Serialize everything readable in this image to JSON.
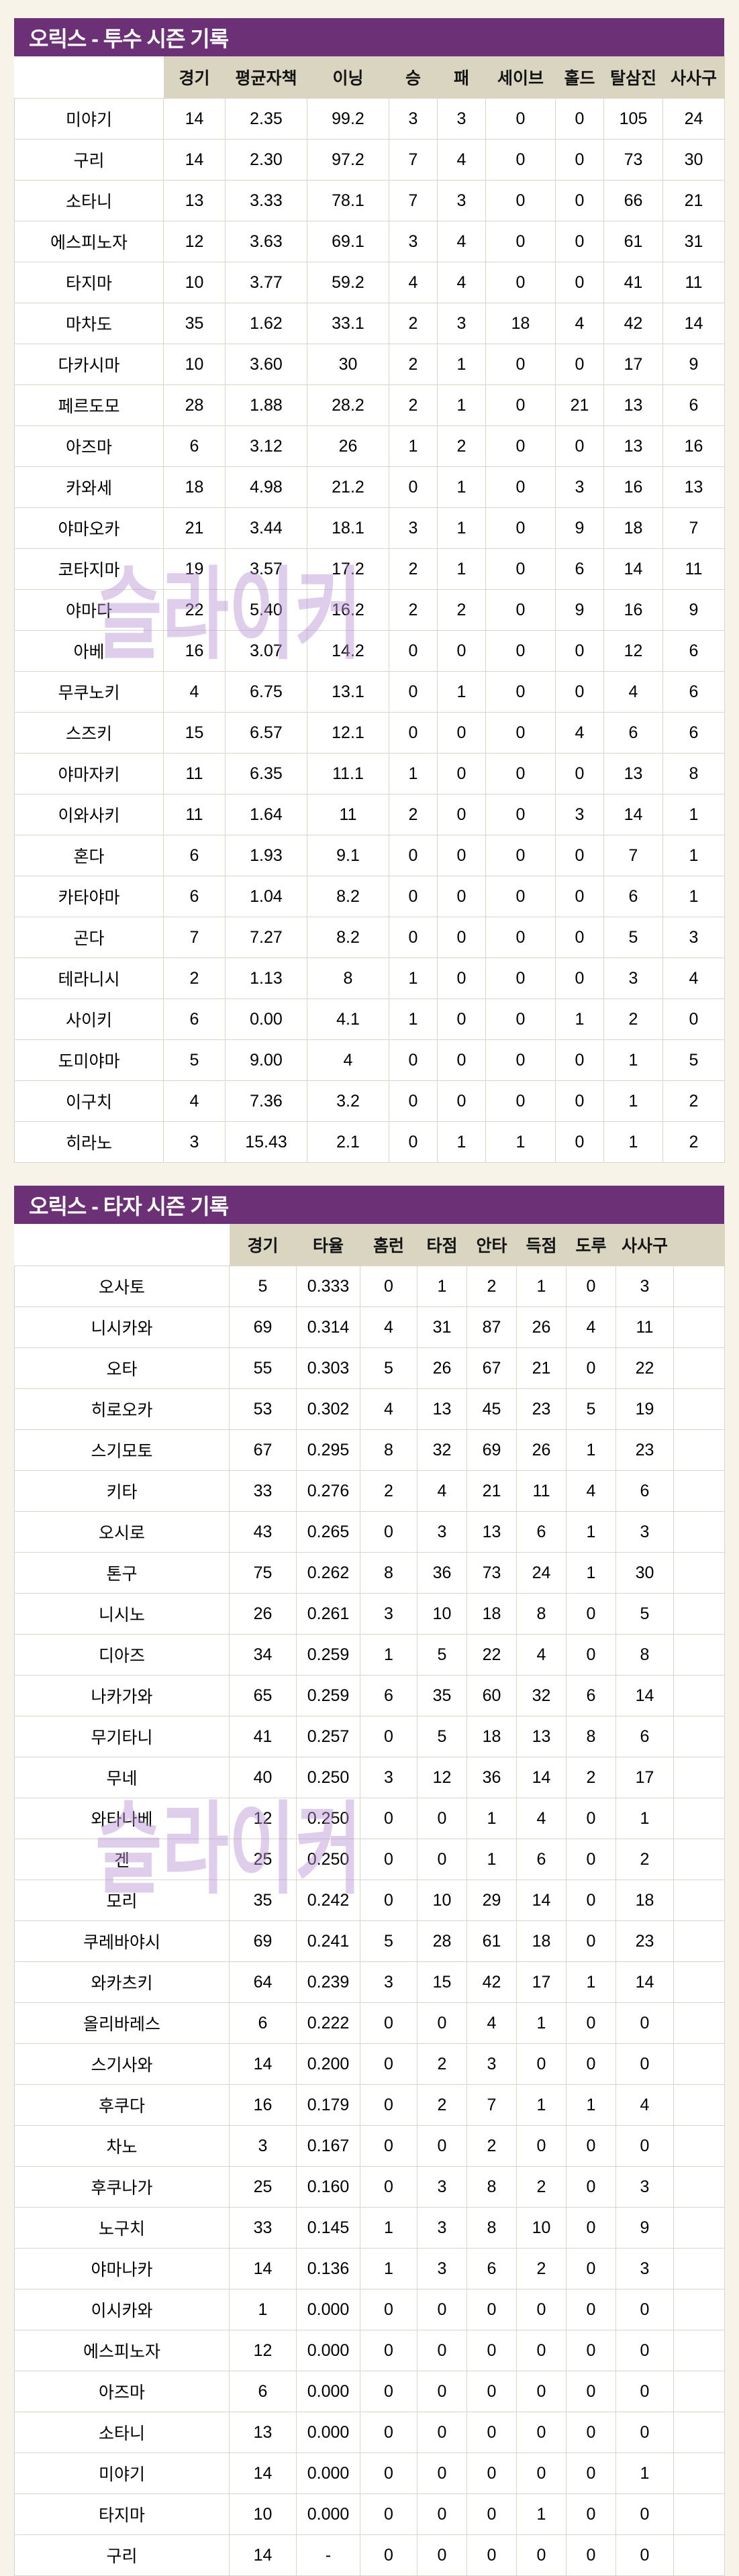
{
  "colors": {
    "page_background": "#f7f3e8",
    "title_bar_bg": "#6b3076",
    "title_text": "#ffffff",
    "column_header_bg": "#dad5c0",
    "cell_bg": "#ffffff",
    "cell_border": "#d9d4c5",
    "watermark_color": "rgba(182,146,212,0.45)"
  },
  "watermark_text": "슬라이커",
  "pitchers": {
    "title": "오릭스 - 투수 시즌 기록",
    "columns": [
      "경기",
      "평균자책",
      "이닝",
      "승",
      "패",
      "세이브",
      "홀드",
      "탈삼진",
      "사사구"
    ],
    "trailing_empty_column": false,
    "rows": [
      {
        "name": "미야기",
        "values": [
          "14",
          "2.35",
          "99.2",
          "3",
          "3",
          "0",
          "0",
          "105",
          "24"
        ]
      },
      {
        "name": "구리",
        "values": [
          "14",
          "2.30",
          "97.2",
          "7",
          "4",
          "0",
          "0",
          "73",
          "30"
        ]
      },
      {
        "name": "소타니",
        "values": [
          "13",
          "3.33",
          "78.1",
          "7",
          "3",
          "0",
          "0",
          "66",
          "21"
        ]
      },
      {
        "name": "에스피노자",
        "values": [
          "12",
          "3.63",
          "69.1",
          "3",
          "4",
          "0",
          "0",
          "61",
          "31"
        ]
      },
      {
        "name": "타지마",
        "values": [
          "10",
          "3.77",
          "59.2",
          "4",
          "4",
          "0",
          "0",
          "41",
          "11"
        ]
      },
      {
        "name": "마차도",
        "values": [
          "35",
          "1.62",
          "33.1",
          "2",
          "3",
          "18",
          "4",
          "42",
          "14"
        ]
      },
      {
        "name": "다카시마",
        "values": [
          "10",
          "3.60",
          "30",
          "2",
          "1",
          "0",
          "0",
          "17",
          "9"
        ]
      },
      {
        "name": "페르도모",
        "values": [
          "28",
          "1.88",
          "28.2",
          "2",
          "1",
          "0",
          "21",
          "13",
          "6"
        ]
      },
      {
        "name": "아즈마",
        "values": [
          "6",
          "3.12",
          "26",
          "1",
          "2",
          "0",
          "0",
          "13",
          "16"
        ]
      },
      {
        "name": "카와세",
        "values": [
          "18",
          "4.98",
          "21.2",
          "0",
          "1",
          "0",
          "3",
          "16",
          "13"
        ]
      },
      {
        "name": "야마오카",
        "values": [
          "21",
          "3.44",
          "18.1",
          "3",
          "1",
          "0",
          "9",
          "18",
          "7"
        ]
      },
      {
        "name": "코타지마",
        "values": [
          "19",
          "3.57",
          "17.2",
          "2",
          "1",
          "0",
          "6",
          "14",
          "11"
        ]
      },
      {
        "name": "야마다",
        "values": [
          "22",
          "5.40",
          "16.2",
          "2",
          "2",
          "0",
          "9",
          "16",
          "9"
        ]
      },
      {
        "name": "아베",
        "values": [
          "16",
          "3.07",
          "14.2",
          "0",
          "0",
          "0",
          "0",
          "12",
          "6"
        ]
      },
      {
        "name": "무쿠노키",
        "values": [
          "4",
          "6.75",
          "13.1",
          "0",
          "1",
          "0",
          "0",
          "4",
          "6"
        ]
      },
      {
        "name": "스즈키",
        "values": [
          "15",
          "6.57",
          "12.1",
          "0",
          "0",
          "0",
          "4",
          "6",
          "6"
        ]
      },
      {
        "name": "야마자키",
        "values": [
          "11",
          "6.35",
          "11.1",
          "1",
          "0",
          "0",
          "0",
          "13",
          "8"
        ]
      },
      {
        "name": "이와사키",
        "values": [
          "11",
          "1.64",
          "11",
          "2",
          "0",
          "0",
          "3",
          "14",
          "1"
        ]
      },
      {
        "name": "혼다",
        "values": [
          "6",
          "1.93",
          "9.1",
          "0",
          "0",
          "0",
          "0",
          "7",
          "1"
        ]
      },
      {
        "name": "카타야마",
        "values": [
          "6",
          "1.04",
          "8.2",
          "0",
          "0",
          "0",
          "0",
          "6",
          "1"
        ]
      },
      {
        "name": "곤다",
        "values": [
          "7",
          "7.27",
          "8.2",
          "0",
          "0",
          "0",
          "0",
          "5",
          "3"
        ]
      },
      {
        "name": "테라니시",
        "values": [
          "2",
          "1.13",
          "8",
          "1",
          "0",
          "0",
          "0",
          "3",
          "4"
        ]
      },
      {
        "name": "사이키",
        "values": [
          "6",
          "0.00",
          "4.1",
          "1",
          "0",
          "0",
          "1",
          "2",
          "0"
        ]
      },
      {
        "name": "도미야마",
        "values": [
          "5",
          "9.00",
          "4",
          "0",
          "0",
          "0",
          "0",
          "1",
          "5"
        ]
      },
      {
        "name": "이구치",
        "values": [
          "4",
          "7.36",
          "3.2",
          "0",
          "0",
          "0",
          "0",
          "1",
          "2"
        ]
      },
      {
        "name": "히라노",
        "values": [
          "3",
          "15.43",
          "2.1",
          "0",
          "1",
          "1",
          "0",
          "1",
          "2"
        ]
      }
    ]
  },
  "batters": {
    "title": "오릭스 - 타자 시즌 기록",
    "columns": [
      "경기",
      "타율",
      "홈런",
      "타점",
      "안타",
      "득점",
      "도루",
      "사사구"
    ],
    "trailing_empty_column": true,
    "rows": [
      {
        "name": "오사토",
        "values": [
          "5",
          "0.333",
          "0",
          "1",
          "2",
          "1",
          "0",
          "3"
        ]
      },
      {
        "name": "니시카와",
        "values": [
          "69",
          "0.314",
          "4",
          "31",
          "87",
          "26",
          "4",
          "11"
        ]
      },
      {
        "name": "오타",
        "values": [
          "55",
          "0.303",
          "5",
          "26",
          "67",
          "21",
          "0",
          "22"
        ]
      },
      {
        "name": "히로오카",
        "values": [
          "53",
          "0.302",
          "4",
          "13",
          "45",
          "23",
          "5",
          "19"
        ]
      },
      {
        "name": "스기모토",
        "values": [
          "67",
          "0.295",
          "8",
          "32",
          "69",
          "26",
          "1",
          "23"
        ]
      },
      {
        "name": "키타",
        "values": [
          "33",
          "0.276",
          "2",
          "4",
          "21",
          "11",
          "4",
          "6"
        ]
      },
      {
        "name": "오시로",
        "values": [
          "43",
          "0.265",
          "0",
          "3",
          "13",
          "6",
          "1",
          "3"
        ]
      },
      {
        "name": "톤구",
        "values": [
          "75",
          "0.262",
          "8",
          "36",
          "73",
          "24",
          "1",
          "30"
        ]
      },
      {
        "name": "니시노",
        "values": [
          "26",
          "0.261",
          "3",
          "10",
          "18",
          "8",
          "0",
          "5"
        ]
      },
      {
        "name": "디아즈",
        "values": [
          "34",
          "0.259",
          "1",
          "5",
          "22",
          "4",
          "0",
          "8"
        ]
      },
      {
        "name": "나카가와",
        "values": [
          "65",
          "0.259",
          "6",
          "35",
          "60",
          "32",
          "6",
          "14"
        ]
      },
      {
        "name": "무기타니",
        "values": [
          "41",
          "0.257",
          "0",
          "5",
          "18",
          "13",
          "8",
          "6"
        ]
      },
      {
        "name": "무네",
        "values": [
          "40",
          "0.250",
          "3",
          "12",
          "36",
          "14",
          "2",
          "17"
        ]
      },
      {
        "name": "와타나베",
        "values": [
          "12",
          "0.250",
          "0",
          "0",
          "1",
          "4",
          "0",
          "1"
        ]
      },
      {
        "name": "겐",
        "values": [
          "25",
          "0.250",
          "0",
          "0",
          "1",
          "6",
          "0",
          "2"
        ]
      },
      {
        "name": "모리",
        "values": [
          "35",
          "0.242",
          "0",
          "10",
          "29",
          "14",
          "0",
          "18"
        ]
      },
      {
        "name": "쿠레바야시",
        "values": [
          "69",
          "0.241",
          "5",
          "28",
          "61",
          "18",
          "0",
          "23"
        ]
      },
      {
        "name": "와카츠키",
        "values": [
          "64",
          "0.239",
          "3",
          "15",
          "42",
          "17",
          "1",
          "14"
        ]
      },
      {
        "name": "올리바레스",
        "values": [
          "6",
          "0.222",
          "0",
          "0",
          "4",
          "1",
          "0",
          "0"
        ]
      },
      {
        "name": "스기사와",
        "values": [
          "14",
          "0.200",
          "0",
          "2",
          "3",
          "0",
          "0",
          "0"
        ]
      },
      {
        "name": "후쿠다",
        "values": [
          "16",
          "0.179",
          "0",
          "2",
          "7",
          "1",
          "1",
          "4"
        ]
      },
      {
        "name": "차노",
        "values": [
          "3",
          "0.167",
          "0",
          "0",
          "2",
          "0",
          "0",
          "0"
        ]
      },
      {
        "name": "후쿠나가",
        "values": [
          "25",
          "0.160",
          "0",
          "3",
          "8",
          "2",
          "0",
          "3"
        ]
      },
      {
        "name": "노구치",
        "values": [
          "33",
          "0.145",
          "1",
          "3",
          "8",
          "10",
          "0",
          "9"
        ]
      },
      {
        "name": "야마나카",
        "values": [
          "14",
          "0.136",
          "1",
          "3",
          "6",
          "2",
          "0",
          "3"
        ]
      },
      {
        "name": "이시카와",
        "values": [
          "1",
          "0.000",
          "0",
          "0",
          "0",
          "0",
          "0",
          "0"
        ]
      },
      {
        "name": "에스피노자",
        "values": [
          "12",
          "0.000",
          "0",
          "0",
          "0",
          "0",
          "0",
          "0"
        ]
      },
      {
        "name": "아즈마",
        "values": [
          "6",
          "0.000",
          "0",
          "0",
          "0",
          "0",
          "0",
          "0"
        ]
      },
      {
        "name": "소타니",
        "values": [
          "13",
          "0.000",
          "0",
          "0",
          "0",
          "0",
          "0",
          "0"
        ]
      },
      {
        "name": "미야기",
        "values": [
          "14",
          "0.000",
          "0",
          "0",
          "0",
          "0",
          "0",
          "1"
        ]
      },
      {
        "name": "타지마",
        "values": [
          "10",
          "0.000",
          "0",
          "0",
          "0",
          "1",
          "0",
          "0"
        ]
      },
      {
        "name": "구리",
        "values": [
          "14",
          "-",
          "0",
          "0",
          "0",
          "0",
          "0",
          "0"
        ]
      }
    ]
  }
}
